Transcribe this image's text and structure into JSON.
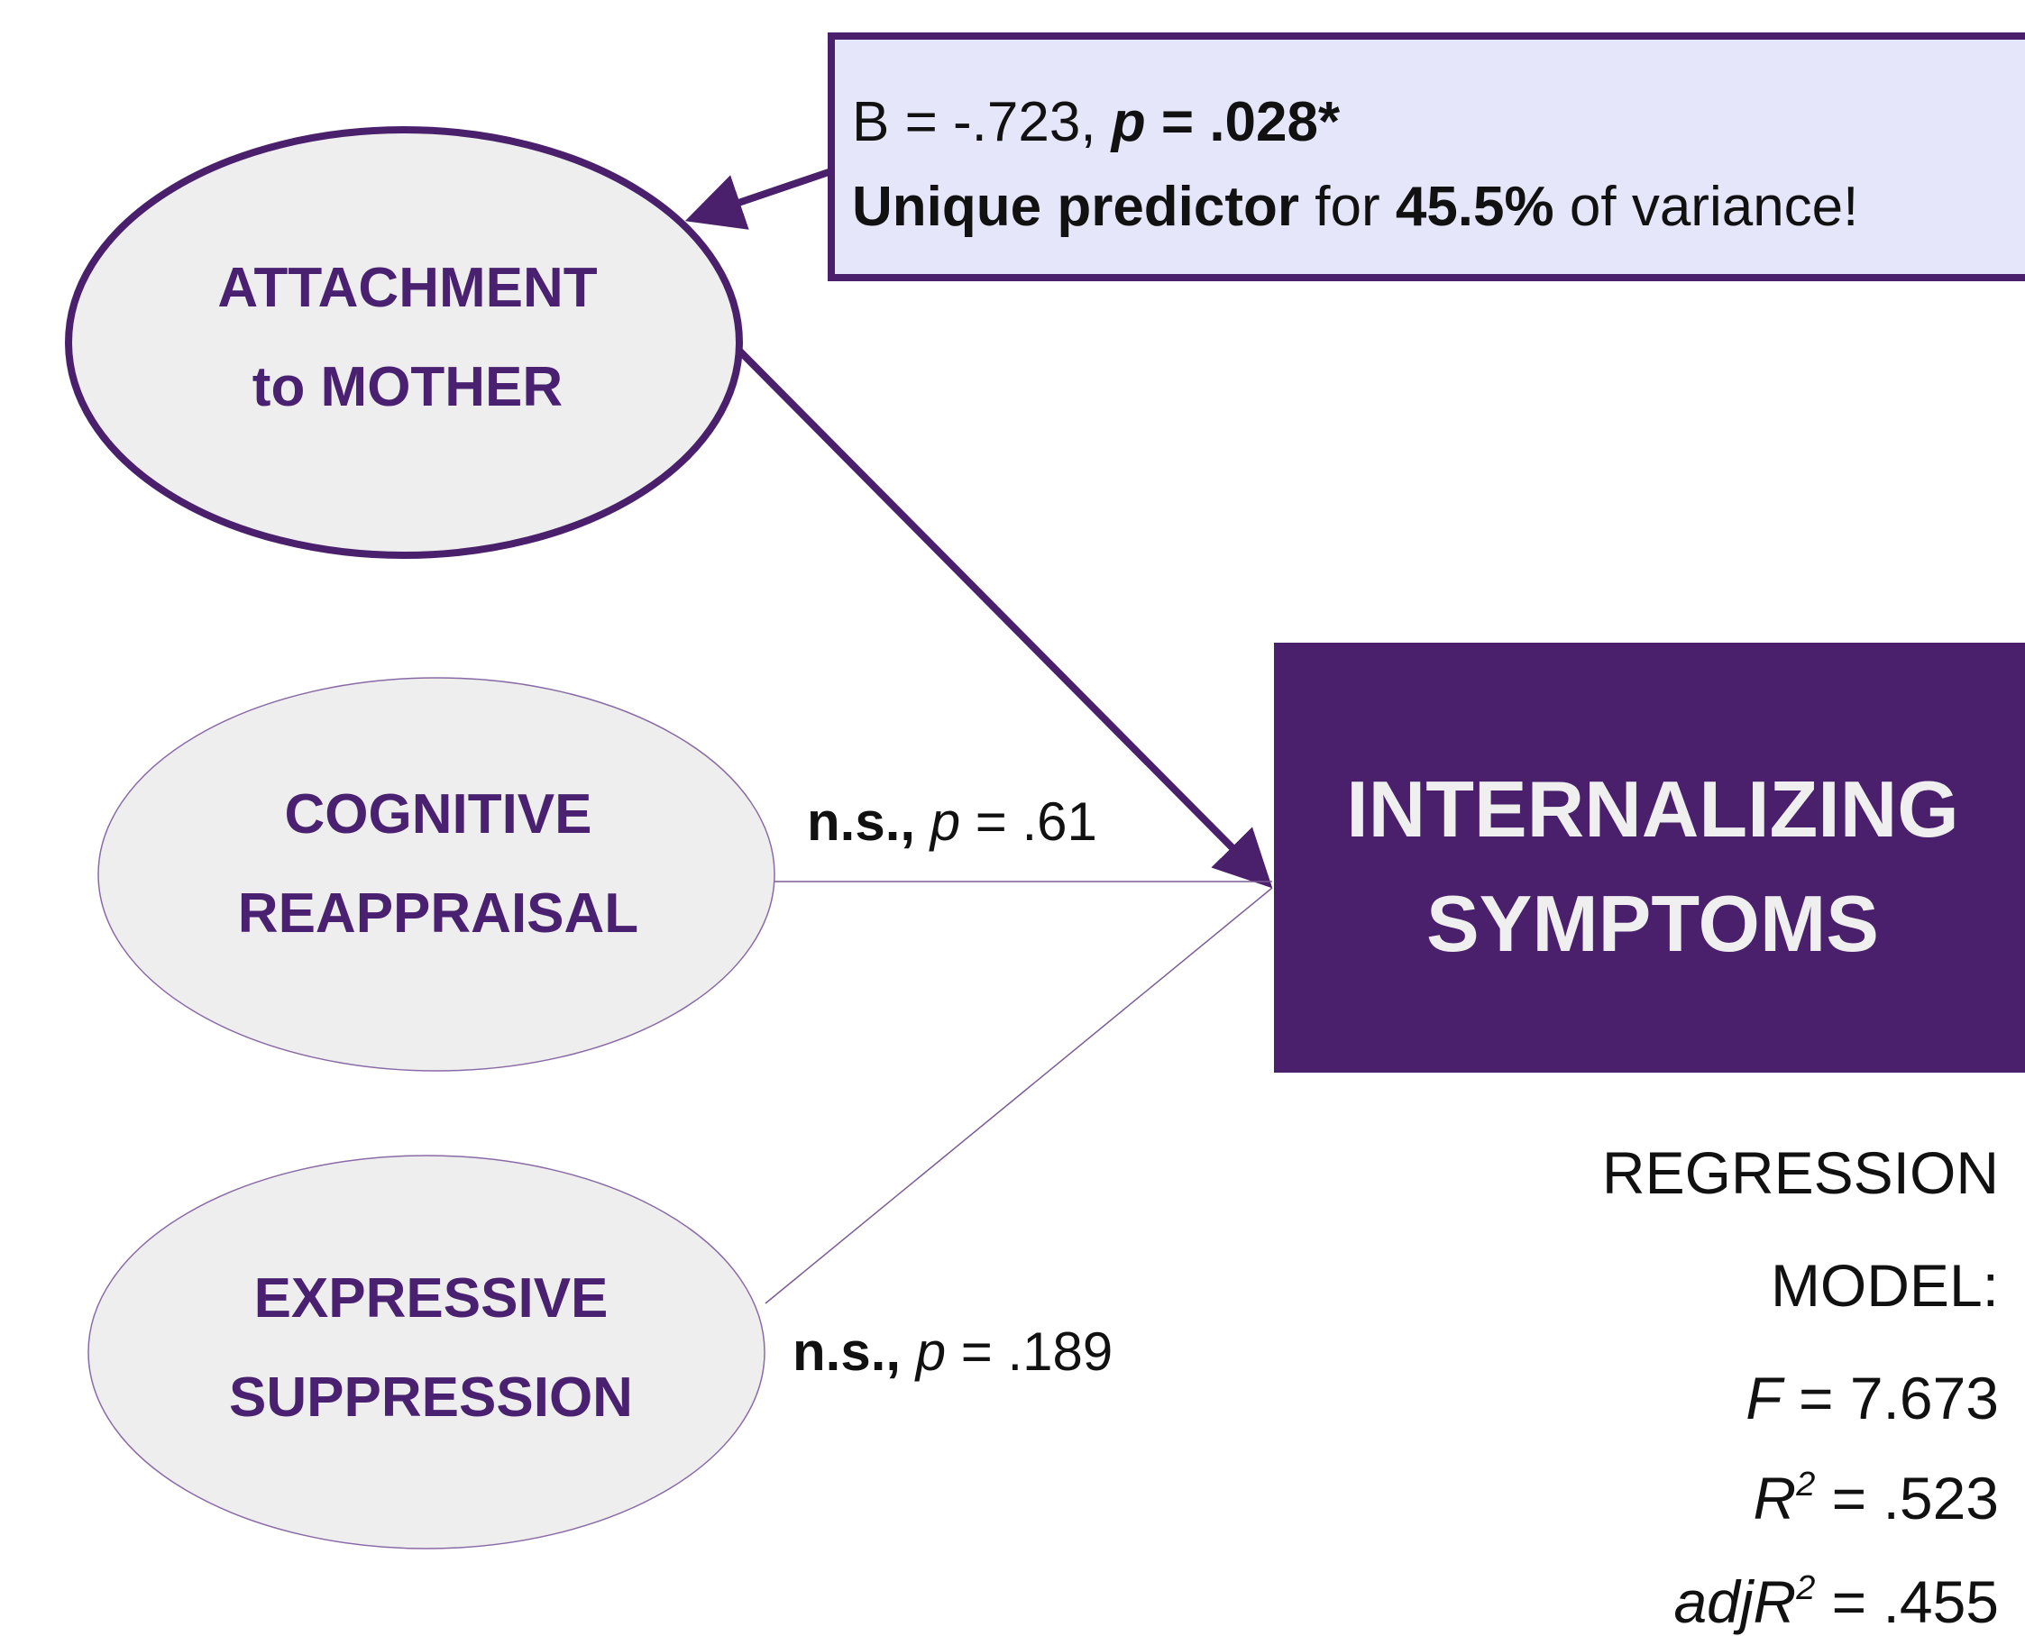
{
  "callout": {
    "line1": [
      "B = -.723, ",
      "p",
      " = .028*"
    ],
    "line2": [
      "Unique predictor",
      " for ",
      "45.5%",
      " of variance!"
    ]
  },
  "nodes": [
    {
      "label": [
        "ATTACHMENT",
        "to MOTHER"
      ]
    },
    {
      "label": [
        "COGNITIVE",
        "REAPPRAISAL"
      ]
    },
    {
      "label": [
        "EXPRESSIVE",
        "SUPPRESSION"
      ]
    }
  ],
  "outcome": {
    "label": [
      "INTERNALIZING",
      "SYMPTOMS"
    ]
  },
  "edges": [
    {
      "label": [
        "n.s., ",
        "p",
        " = .61"
      ]
    },
    {
      "label": [
        "n.s., ",
        "p",
        " = .189"
      ]
    }
  ],
  "model": {
    "lines": [
      [
        "REGRESSION"
      ],
      [
        "MODEL:"
      ],
      [
        "F",
        " = 7.673"
      ],
      [
        "R",
        "2",
        " = .523"
      ],
      [
        "adjR",
        "2",
        " = .455"
      ]
    ]
  }
}
